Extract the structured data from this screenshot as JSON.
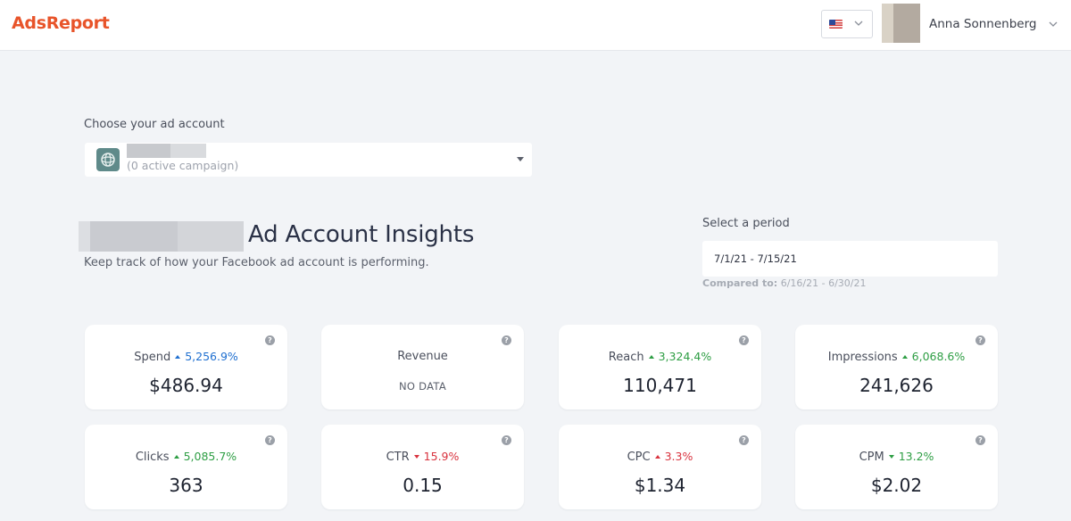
{
  "header": {
    "logo": "AdsReport",
    "language_flag": "us-flag-icon",
    "user_name": "Anna Sonnenberg"
  },
  "account": {
    "label": "Choose your ad account",
    "subtitle": "(0 active campaign)"
  },
  "insights": {
    "title": "Ad Account Insights",
    "subtitle": "Keep track of how your Facebook ad account is performing."
  },
  "period": {
    "label": "Select a period",
    "value": "7/1/21 - 7/15/21",
    "compared_label": "Compared to:",
    "compared_value": "6/16/21 - 6/30/21"
  },
  "colors": {
    "brand": "#e8542a",
    "positive": "#2e9e44",
    "negative": "#d9333f",
    "info": "#1f6fd0"
  },
  "metrics": [
    {
      "label": "Spend",
      "delta": "5,256.9%",
      "direction": "up",
      "tone": "info",
      "value": "$486.94"
    },
    {
      "label": "Revenue",
      "delta": "",
      "direction": "",
      "tone": "",
      "value": "",
      "nodata": "NO DATA"
    },
    {
      "label": "Reach",
      "delta": "3,324.4%",
      "direction": "up",
      "tone": "positive",
      "value": "110,471"
    },
    {
      "label": "Impressions",
      "delta": "6,068.6%",
      "direction": "up",
      "tone": "positive",
      "value": "241,626"
    },
    {
      "label": "Clicks",
      "delta": "5,085.7%",
      "direction": "up",
      "tone": "positive",
      "value": "363"
    },
    {
      "label": "CTR",
      "delta": "15.9%",
      "direction": "down",
      "tone": "negative",
      "value": "0.15"
    },
    {
      "label": "CPC",
      "delta": "3.3%",
      "direction": "up",
      "tone": "negative",
      "value": "$1.34"
    },
    {
      "label": "CPM",
      "delta": "13.2%",
      "direction": "down",
      "tone": "positive",
      "value": "$2.02"
    }
  ]
}
